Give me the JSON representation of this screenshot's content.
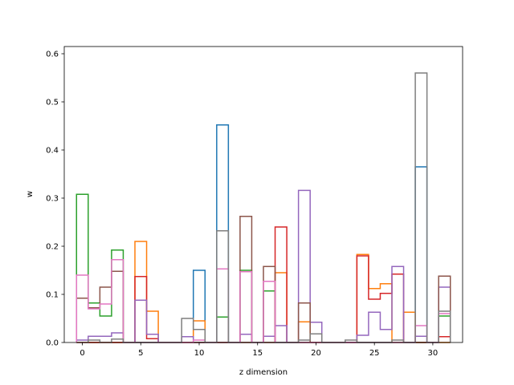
{
  "chart_data": {
    "type": "step",
    "xlabel": "z dimension",
    "ylabel": "w",
    "xlim": [
      -1.55,
      32.55
    ],
    "ylim": [
      0,
      0.615
    ],
    "xticks": [
      0,
      5,
      10,
      15,
      20,
      25,
      30
    ],
    "yticks": [
      0.0,
      0.1,
      0.2,
      0.3,
      0.4,
      0.5,
      0.6
    ],
    "grid": false,
    "legend": "none",
    "n_bins": 32,
    "series": [
      {
        "color": "#1f77b4",
        "values": [
          0,
          0,
          0,
          0,
          0,
          0,
          0,
          0,
          0,
          0,
          0.15,
          0,
          0.452,
          0,
          0,
          0,
          0,
          0,
          0,
          0,
          0,
          0,
          0,
          0,
          0,
          0,
          0,
          0,
          0,
          0.365,
          0,
          0
        ]
      },
      {
        "color": "#ff7f0e",
        "values": [
          0,
          0,
          0,
          0,
          0,
          0.21,
          0.065,
          0,
          0,
          0,
          0.045,
          0,
          0,
          0,
          0,
          0,
          0,
          0.145,
          0,
          0.043,
          0,
          0,
          0,
          0,
          0.183,
          0.112,
          0.122,
          0,
          0.063,
          0,
          0,
          0
        ]
      },
      {
        "color": "#2ca02c",
        "values": [
          0.308,
          0.082,
          0.055,
          0.192,
          0,
          0,
          0,
          0,
          0,
          0,
          0,
          0,
          0.053,
          0,
          0.15,
          0,
          0.107,
          0,
          0,
          0,
          0,
          0,
          0,
          0,
          0,
          0,
          0,
          0,
          0,
          0,
          0,
          0.055
        ]
      },
      {
        "color": "#d62728",
        "values": [
          0,
          0,
          0,
          0,
          0,
          0.137,
          0.008,
          0,
          0,
          0,
          0,
          0,
          0,
          0,
          0,
          0,
          0,
          0.24,
          0,
          0,
          0,
          0,
          0,
          0,
          0.18,
          0.09,
          0.102,
          0.142,
          0,
          0,
          0,
          0.012
        ]
      },
      {
        "color": "#9467bd",
        "values": [
          0.005,
          0.013,
          0.013,
          0.02,
          0,
          0.088,
          0.017,
          0,
          0,
          0.012,
          0,
          0,
          0,
          0,
          0.017,
          0,
          0.013,
          0.035,
          0,
          0.316,
          0.042,
          0,
          0,
          0,
          0.015,
          0.063,
          0.027,
          0.158,
          0,
          0.013,
          0,
          0.115
        ]
      },
      {
        "color": "#8c564b",
        "values": [
          0.092,
          0.072,
          0.115,
          0.148,
          0,
          0,
          0,
          0,
          0,
          0,
          0,
          0,
          0,
          0,
          0.262,
          0,
          0.158,
          0,
          0,
          0.082,
          0,
          0,
          0,
          0,
          0,
          0,
          0,
          0,
          0,
          0,
          0,
          0.138
        ]
      },
      {
        "color": "#e377c2",
        "values": [
          0.14,
          0.07,
          0.08,
          0.172,
          0,
          0,
          0,
          0,
          0,
          0,
          0.005,
          0,
          0.153,
          0,
          0.147,
          0,
          0.127,
          0,
          0,
          0,
          0,
          0,
          0,
          0,
          0,
          0,
          0,
          0,
          0,
          0.035,
          0,
          0.06
        ]
      },
      {
        "color": "#7f7f7f",
        "values": [
          0,
          0.005,
          0,
          0.007,
          0,
          0,
          0,
          0,
          0,
          0.05,
          0.027,
          0,
          0.232,
          0,
          0,
          0,
          0,
          0,
          0,
          0.005,
          0.018,
          0,
          0,
          0.005,
          0,
          0,
          0,
          0.005,
          0,
          0.56,
          0,
          0.065
        ]
      }
    ]
  }
}
